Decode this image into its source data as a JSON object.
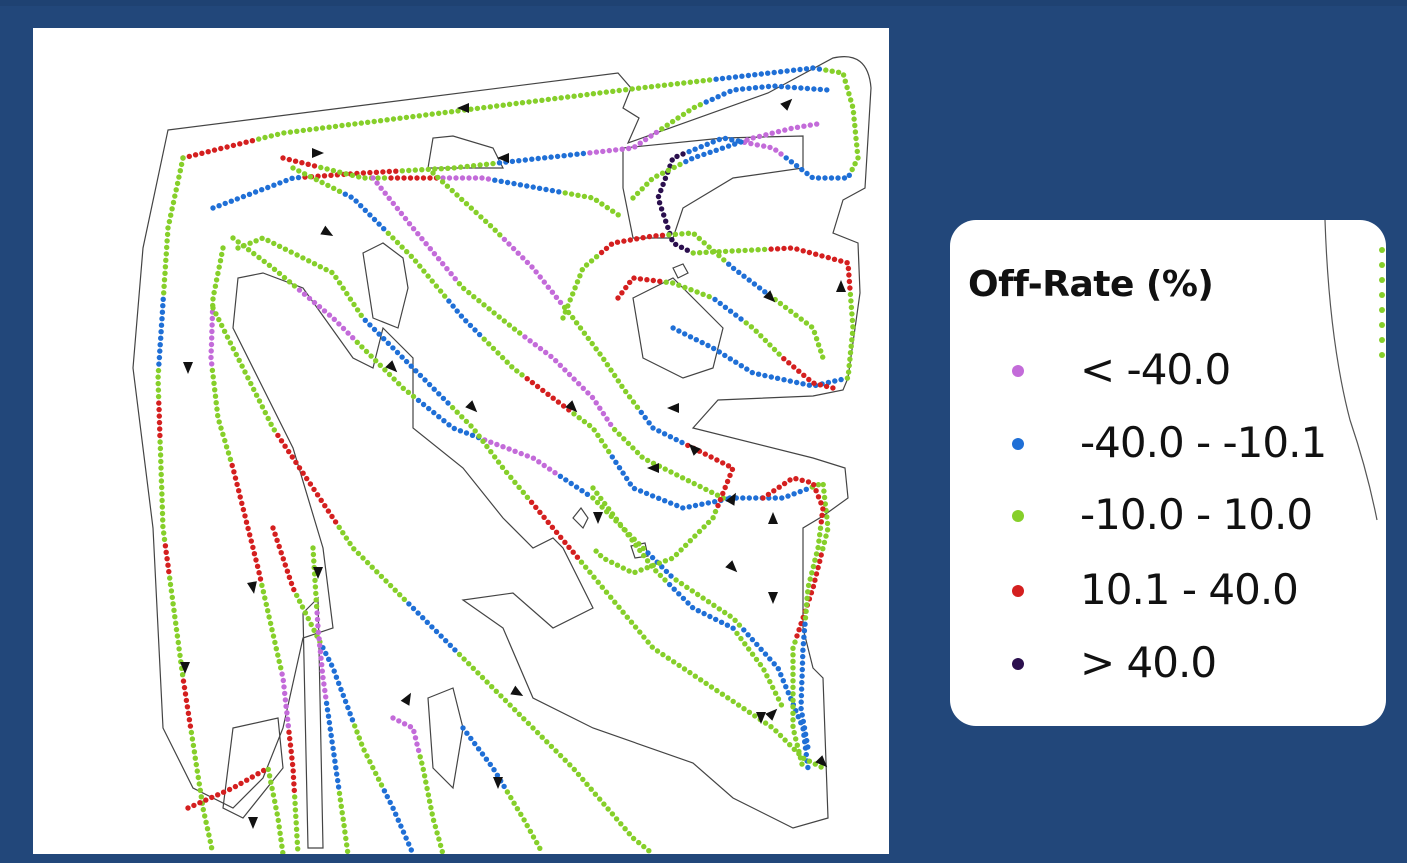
{
  "legend": {
    "title": "Off-Rate (%)",
    "items": [
      {
        "label": "< -40.0",
        "color": "#c36bd9"
      },
      {
        "label": "-40.0 - -10.1",
        "color": "#1f6fd6"
      },
      {
        "label": "-10.0 - 10.0",
        "color": "#86cf2a"
      },
      {
        "label": "10.1 - 40.0",
        "color": "#d41f1f"
      },
      {
        "label": "> 40.0",
        "color": "#2b0f4e"
      }
    ]
  },
  "map": {
    "path_direction_marker": "arrowhead-icon",
    "field_boundary": "thin gray outline"
  }
}
